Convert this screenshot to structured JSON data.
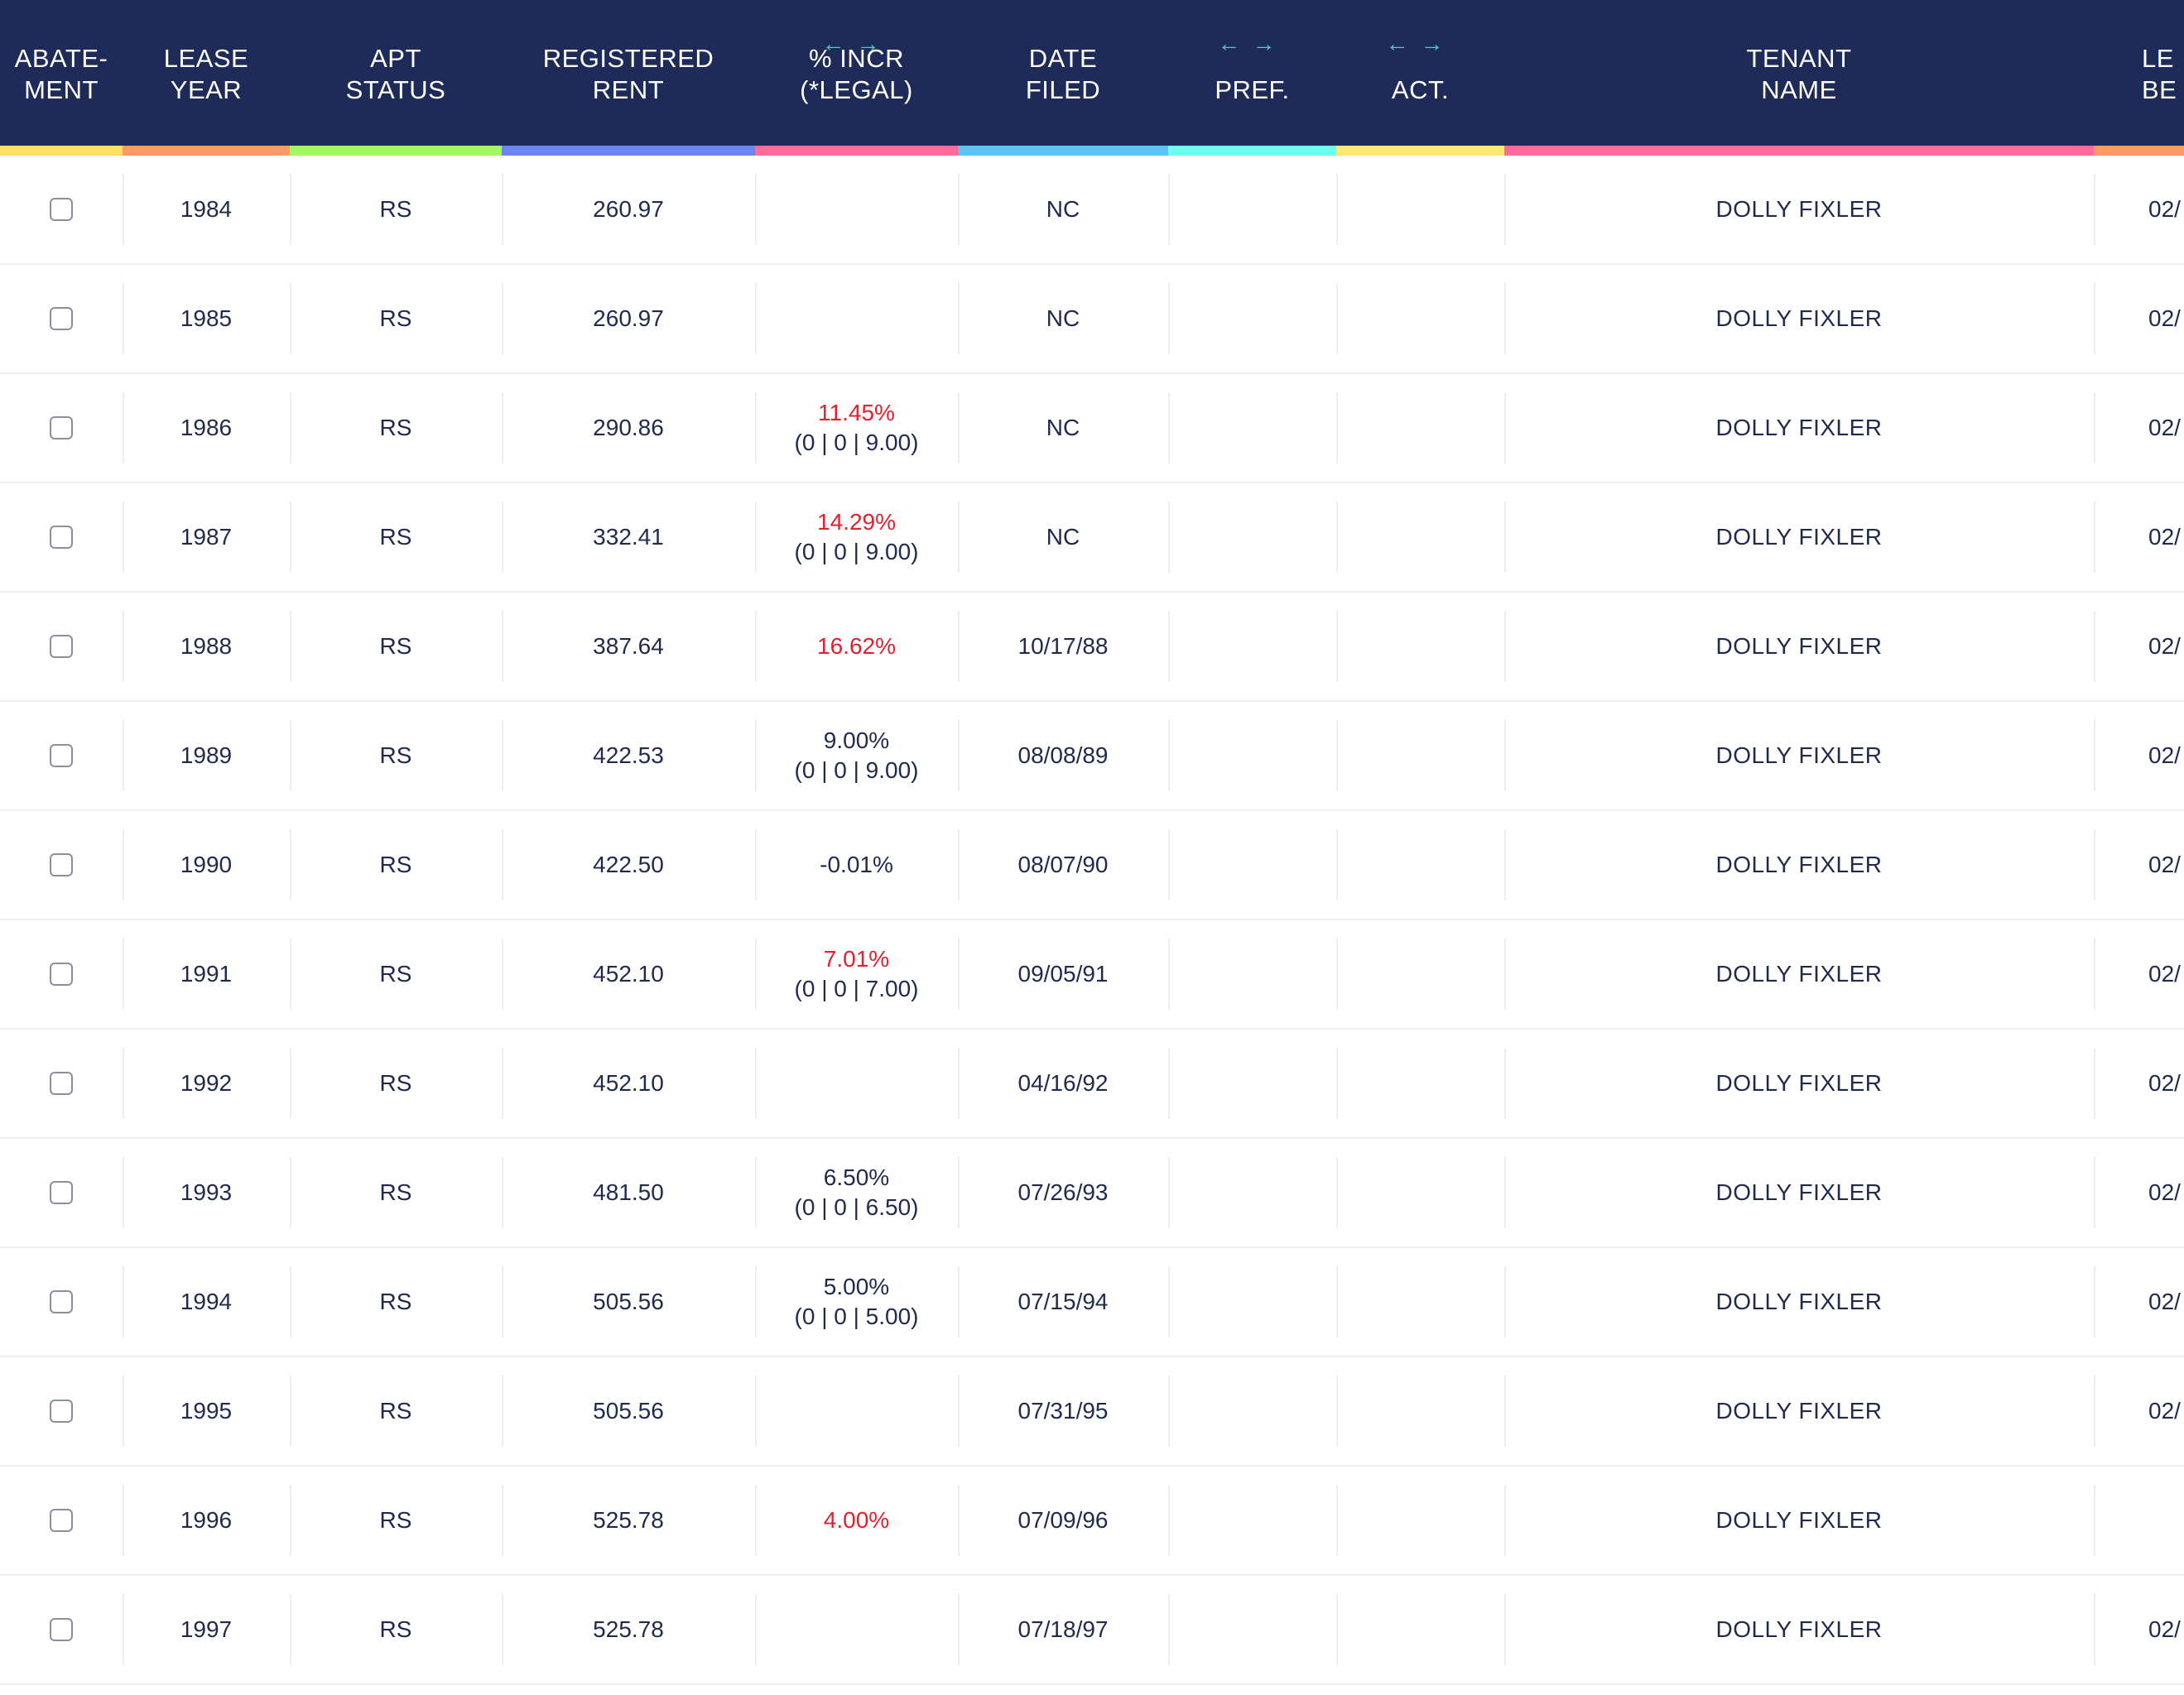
{
  "colors": {
    "header_bg": "#1e2a57",
    "arrow_color": "#3fd4bc",
    "increase_red": "#e5202e",
    "stripes": [
      "#ffe066",
      "#ff9966",
      "#a3f760",
      "#6b85f0",
      "#ff6b9a",
      "#5bc4f5",
      "#6bfff0",
      "#ffe873",
      "#ff6b9a",
      "#ff9966"
    ]
  },
  "columns": [
    {
      "key": "abatement",
      "line1": "ABATE-",
      "line2": "MENT",
      "arrows": ""
    },
    {
      "key": "lease_year",
      "line1": "LEASE",
      "line2": "YEAR",
      "arrows": ""
    },
    {
      "key": "apt_status",
      "line1": "APT",
      "line2": "STATUS",
      "arrows": ""
    },
    {
      "key": "registered_rent",
      "line1": "REGISTERED",
      "line2": "RENT",
      "arrows": ""
    },
    {
      "key": "pct_incr",
      "line1": "% INCR",
      "line2": "(*LEGAL)",
      "arrows": "←→"
    },
    {
      "key": "date_filed",
      "line1": "DATE",
      "line2": "FILED",
      "arrows": ""
    },
    {
      "key": "pref",
      "line1": "",
      "line2": "PREF.",
      "arrows": "←→"
    },
    {
      "key": "act",
      "line1": "",
      "line2": "ACT.",
      "arrows": "←→"
    },
    {
      "key": "tenant_name",
      "line1": "TENANT",
      "line2": "NAME",
      "arrows": ""
    },
    {
      "key": "lease_begin",
      "line1": "LE",
      "line2": "BE",
      "arrows": ""
    }
  ],
  "rows": [
    {
      "year": "1984",
      "status": "RS",
      "rent": "260.97",
      "incr": "",
      "incr_red": false,
      "incr_sub": "",
      "date": "NC",
      "pref": "",
      "act": "",
      "tenant": "DOLLY FIXLER",
      "lease_begin": "02/"
    },
    {
      "year": "1985",
      "status": "RS",
      "rent": "260.97",
      "incr": "",
      "incr_red": false,
      "incr_sub": "",
      "date": "NC",
      "pref": "",
      "act": "",
      "tenant": "DOLLY FIXLER",
      "lease_begin": "02/"
    },
    {
      "year": "1986",
      "status": "RS",
      "rent": "290.86",
      "incr": "11.45%",
      "incr_red": true,
      "incr_sub": "(0 | 0 | 9.00)",
      "date": "NC",
      "pref": "",
      "act": "",
      "tenant": "DOLLY FIXLER",
      "lease_begin": "02/"
    },
    {
      "year": "1987",
      "status": "RS",
      "rent": "332.41",
      "incr": "14.29%",
      "incr_red": true,
      "incr_sub": "(0 | 0 | 9.00)",
      "date": "NC",
      "pref": "",
      "act": "",
      "tenant": "DOLLY FIXLER",
      "lease_begin": "02/"
    },
    {
      "year": "1988",
      "status": "RS",
      "rent": "387.64",
      "incr": "16.62%",
      "incr_red": true,
      "incr_sub": "",
      "date": "10/17/88",
      "pref": "",
      "act": "",
      "tenant": "DOLLY FIXLER",
      "lease_begin": "02/"
    },
    {
      "year": "1989",
      "status": "RS",
      "rent": "422.53",
      "incr": "9.00%",
      "incr_red": false,
      "incr_sub": "(0 | 0 | 9.00)",
      "date": "08/08/89",
      "pref": "",
      "act": "",
      "tenant": "DOLLY FIXLER",
      "lease_begin": "02/"
    },
    {
      "year": "1990",
      "status": "RS",
      "rent": "422.50",
      "incr": "-0.01%",
      "incr_red": false,
      "incr_sub": "",
      "date": "08/07/90",
      "pref": "",
      "act": "",
      "tenant": "DOLLY FIXLER",
      "lease_begin": "02/"
    },
    {
      "year": "1991",
      "status": "RS",
      "rent": "452.10",
      "incr": "7.01%",
      "incr_red": true,
      "incr_sub": "(0 | 0 | 7.00)",
      "date": "09/05/91",
      "pref": "",
      "act": "",
      "tenant": "DOLLY FIXLER",
      "lease_begin": "02/"
    },
    {
      "year": "1992",
      "status": "RS",
      "rent": "452.10",
      "incr": "",
      "incr_red": false,
      "incr_sub": "",
      "date": "04/16/92",
      "pref": "",
      "act": "",
      "tenant": "DOLLY FIXLER",
      "lease_begin": "02/"
    },
    {
      "year": "1993",
      "status": "RS",
      "rent": "481.50",
      "incr": "6.50%",
      "incr_red": false,
      "incr_sub": "(0 | 0 | 6.50)",
      "date": "07/26/93",
      "pref": "",
      "act": "",
      "tenant": "DOLLY FIXLER",
      "lease_begin": "02/"
    },
    {
      "year": "1994",
      "status": "RS",
      "rent": "505.56",
      "incr": "5.00%",
      "incr_red": false,
      "incr_sub": "(0 | 0 | 5.00)",
      "date": "07/15/94",
      "pref": "",
      "act": "",
      "tenant": "DOLLY FIXLER",
      "lease_begin": "02/"
    },
    {
      "year": "1995",
      "status": "RS",
      "rent": "505.56",
      "incr": "",
      "incr_red": false,
      "incr_sub": "",
      "date": "07/31/95",
      "pref": "",
      "act": "",
      "tenant": "DOLLY FIXLER",
      "lease_begin": "02/"
    },
    {
      "year": "1996",
      "status": "RS",
      "rent": "525.78",
      "incr": "4.00%",
      "incr_red": true,
      "incr_sub": "",
      "date": "07/09/96",
      "pref": "",
      "act": "",
      "tenant": "DOLLY FIXLER",
      "lease_begin": ""
    },
    {
      "year": "1997",
      "status": "RS",
      "rent": "525.78",
      "incr": "",
      "incr_red": false,
      "incr_sub": "",
      "date": "07/18/97",
      "pref": "",
      "act": "",
      "tenant": "DOLLY FIXLER",
      "lease_begin": "02/"
    }
  ]
}
